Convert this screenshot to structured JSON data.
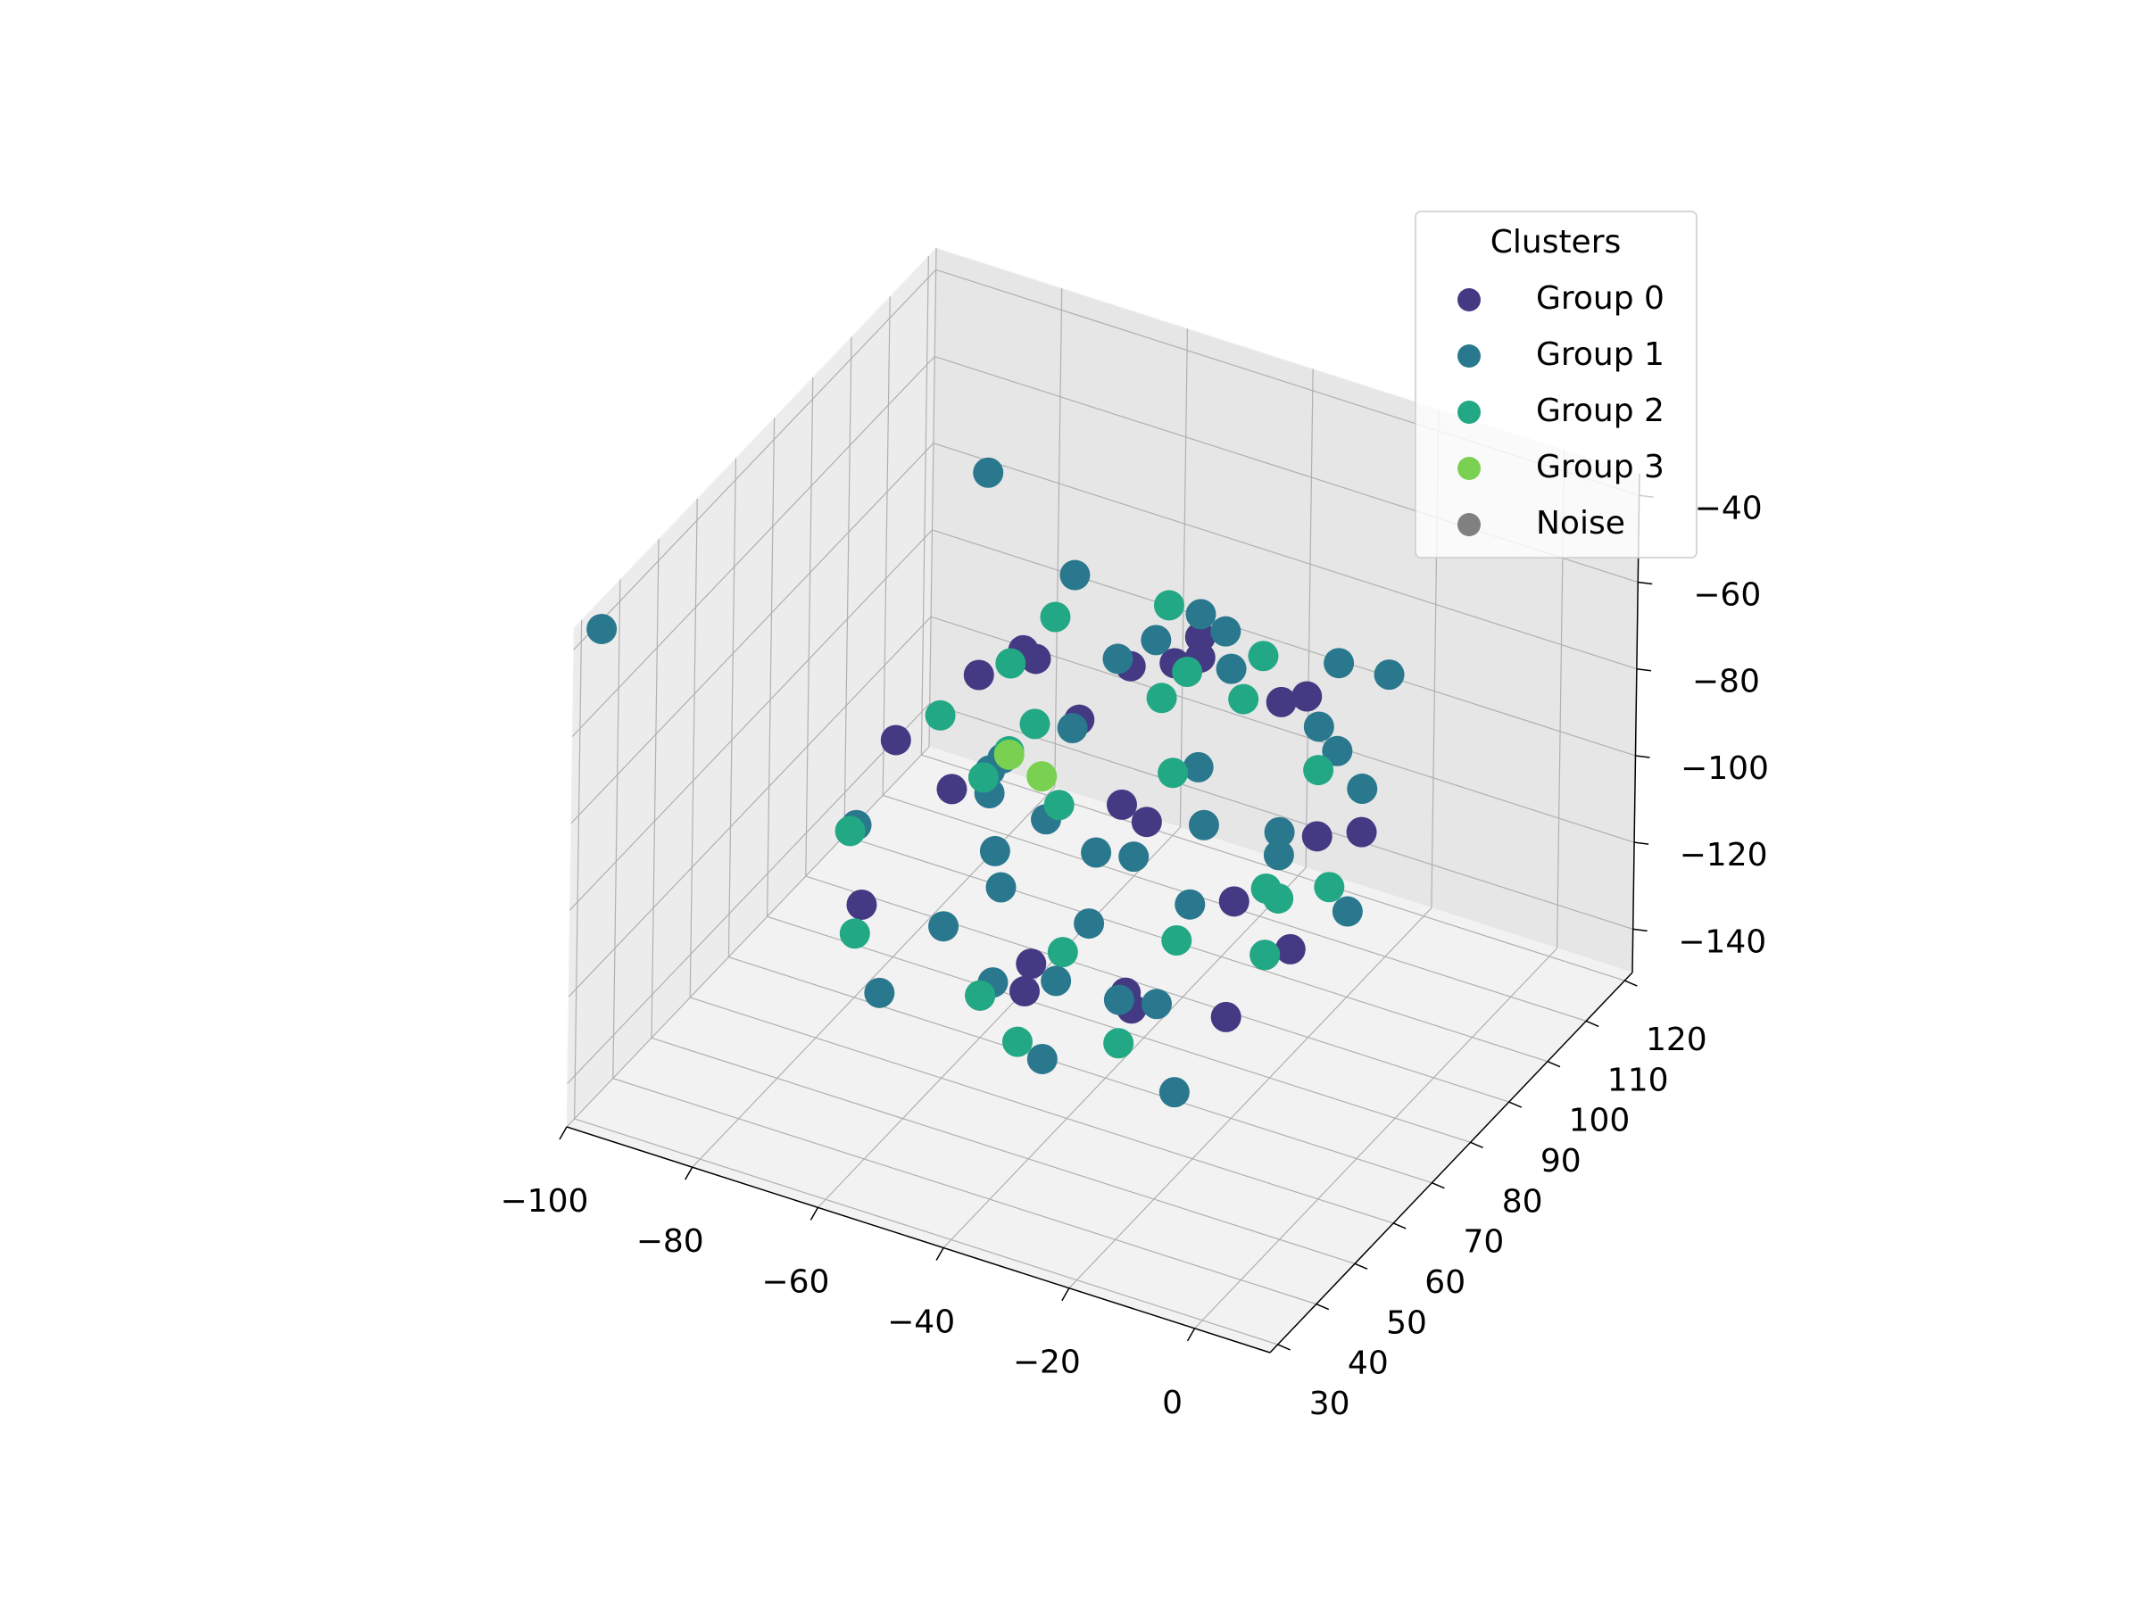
{
  "chart_data": {
    "type": "scatter3d",
    "legend_title": "Clusters",
    "legend_position": "upper right",
    "xlim": [
      -100,
      12
    ],
    "ylim": [
      28,
      122
    ],
    "zlim": [
      -150,
      -35
    ],
    "grid": true,
    "xticks": [
      {
        "value": -100,
        "label": "−100"
      },
      {
        "value": -80,
        "label": "−80"
      },
      {
        "value": -60,
        "label": "−60"
      },
      {
        "value": -40,
        "label": "−40"
      },
      {
        "value": -20,
        "label": "−20"
      },
      0
    ],
    "yticks": [
      30,
      40,
      50,
      60,
      70,
      80,
      90,
      100,
      110,
      120
    ],
    "zticks": [
      {
        "value": -140,
        "label": "−140"
      },
      {
        "value": -120,
        "label": "−120"
      },
      {
        "value": -100,
        "label": "−100"
      },
      {
        "value": -80,
        "label": "−80"
      },
      {
        "value": -60,
        "label": "−60"
      },
      {
        "value": -40,
        "label": "−40"
      }
    ],
    "series": [
      {
        "name": "Group 0",
        "color": "#443983",
        "x": [
          -60,
          -30,
          -45,
          -20,
          -70,
          -55,
          -35,
          -10,
          -50,
          -25,
          -65,
          -40,
          -15,
          -80,
          -30,
          -55,
          -45,
          -20,
          -60,
          -35,
          -50,
          -25,
          -70,
          -40,
          -15
        ],
        "y": [
          80,
          60,
          95,
          70,
          55,
          100,
          85,
          75,
          65,
          90,
          70,
          50,
          60,
          80,
          105,
          75,
          45,
          85,
          95,
          65,
          110,
          55,
          85,
          75,
          95
        ],
        "z": [
          -70,
          -120,
          -80,
          -100,
          -110,
          -90,
          -60,
          -85,
          -130,
          -75,
          -95,
          -105,
          -115,
          -100,
          -90,
          -65,
          -110,
          -125,
          -100,
          -80,
          -95,
          -70,
          -85,
          -135,
          -105
        ]
      },
      {
        "name": "Group 1",
        "color": "#2a788e",
        "x": [
          -98,
          -75,
          -50,
          -30,
          -10,
          -45,
          -60,
          -25,
          -40,
          -55,
          -20,
          -35,
          -65,
          -15,
          -50,
          -30,
          -45,
          -70,
          -5,
          -40,
          -55,
          -25,
          -35,
          -60,
          -20,
          -45,
          -30,
          -50,
          -15,
          -40,
          -65,
          -35,
          -25,
          -55,
          -10,
          -45,
          -30,
          -60,
          -40,
          -20
        ],
        "y": [
          32,
          95,
          70,
          60,
          80,
          50,
          75,
          90,
          100,
          65,
          55,
          85,
          45,
          70,
          110,
          40,
          80,
          60,
          75,
          95,
          85,
          105,
          65,
          70,
          50,
          90,
          75,
          55,
          95,
          60,
          80,
          45,
          100,
          90,
          65,
          75,
          85,
          60,
          40,
          110
        ],
        "z": [
          -38,
          -50,
          -95,
          -85,
          -70,
          -60,
          -120,
          -105,
          -75,
          -100,
          -130,
          -90,
          -80,
          -110,
          -85,
          -95,
          -65,
          -135,
          -100,
          -115,
          -55,
          -80,
          -125,
          -90,
          -105,
          -70,
          -110,
          -75,
          -95,
          -60,
          -100,
          -120,
          -90,
          -140,
          -80,
          -105,
          -65,
          -115,
          -100,
          -85
        ]
      },
      {
        "name": "Group 2",
        "color": "#22a884",
        "x": [
          -75,
          -40,
          -55,
          -20,
          -65,
          -30,
          -50,
          -10,
          -45,
          -60,
          -25,
          -35,
          -70,
          -15,
          -50,
          -40,
          -30,
          -55,
          -20,
          -45,
          -65,
          -35,
          -25,
          -60,
          -40
        ],
        "y": [
          60,
          85,
          75,
          95,
          45,
          70,
          100,
          65,
          55,
          90,
          80,
          50,
          75,
          70,
          60,
          110,
          95,
          80,
          55,
          45,
          85,
          65,
          100,
          70,
          90
        ],
        "z": [
          -100,
          -55,
          -80,
          -120,
          -105,
          -75,
          -95,
          -90,
          -130,
          -115,
          -65,
          -100,
          -85,
          -110,
          -70,
          -90,
          -125,
          -60,
          -95,
          -110,
          -80,
          -135,
          -100,
          -90,
          -75
        ]
      },
      {
        "name": "Group 3",
        "color": "#7ad151",
        "x": [
          -62,
          -58
        ],
        "y": [
          80,
          82
        ],
        "z": [
          -95,
          -100
        ]
      },
      {
        "name": "Noise",
        "color": "#808080",
        "x": [],
        "y": [],
        "z": []
      }
    ]
  }
}
